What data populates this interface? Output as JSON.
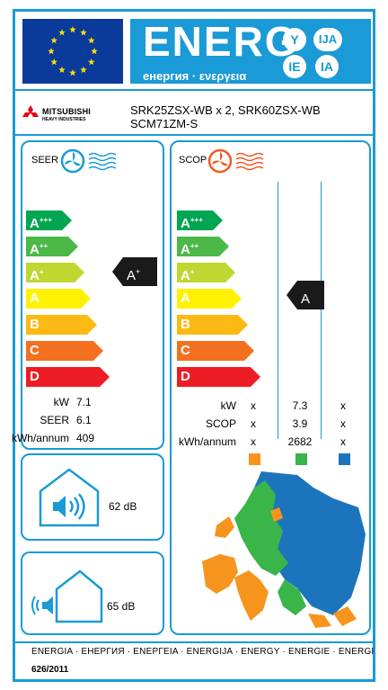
{
  "header": {
    "energ": "ENERG",
    "subtitle": "енергия · ενεργεια",
    "letters": [
      "Y",
      "IJA",
      "IE",
      "IA"
    ]
  },
  "brand": {
    "name": "MITSUBISHI",
    "sub": "HEAVY INDUSTRIES"
  },
  "model": {
    "line1": "SRK25ZSX-WB x 2, SRK60ZSX-WB",
    "line2": "SCM71ZM-S"
  },
  "classes": [
    {
      "letter": "A",
      "sup": "+++",
      "color": "#00a651"
    },
    {
      "letter": "A",
      "sup": "++",
      "color": "#4cb848"
    },
    {
      "letter": "A",
      "sup": "+",
      "color": "#bfd730"
    },
    {
      "letter": "A",
      "sup": "",
      "color": "#fff200"
    },
    {
      "letter": "B",
      "sup": "",
      "color": "#fdb913"
    },
    {
      "letter": "C",
      "sup": "",
      "color": "#f37021"
    },
    {
      "letter": "D",
      "sup": "",
      "color": "#ed1c24"
    }
  ],
  "seer": {
    "label": "SEER",
    "rating": "A",
    "rating_sup": "+",
    "kw_label": "kW",
    "kw": "7.1",
    "seer_label": "SEER",
    "seer": "6.1",
    "kwh_label": "kWh/annum",
    "kwh": "409"
  },
  "scop": {
    "label": "SCOP",
    "rating": "A",
    "rating_sup": "",
    "kw_label": "kW",
    "kw": [
      "x",
      "7.3",
      "x"
    ],
    "scop_label": "SCOP",
    "scop": [
      "x",
      "3.9",
      "x"
    ],
    "kwh_label": "kWh/annum",
    "kwh": [
      "x",
      "2682",
      "x"
    ],
    "zone_colors": [
      "#f7941d",
      "#39b54a",
      "#1c75bc"
    ]
  },
  "noise": {
    "indoor": "62 dB",
    "outdoor": "65 dB"
  },
  "footer": {
    "languages": "ENERGIA · ЕНЕРГИЯ · ΕΝΕΡΓΕΙΑ · ENERGIJA · ENERGY · ENERGIE · ENERGI",
    "regulation": "626/2011"
  }
}
